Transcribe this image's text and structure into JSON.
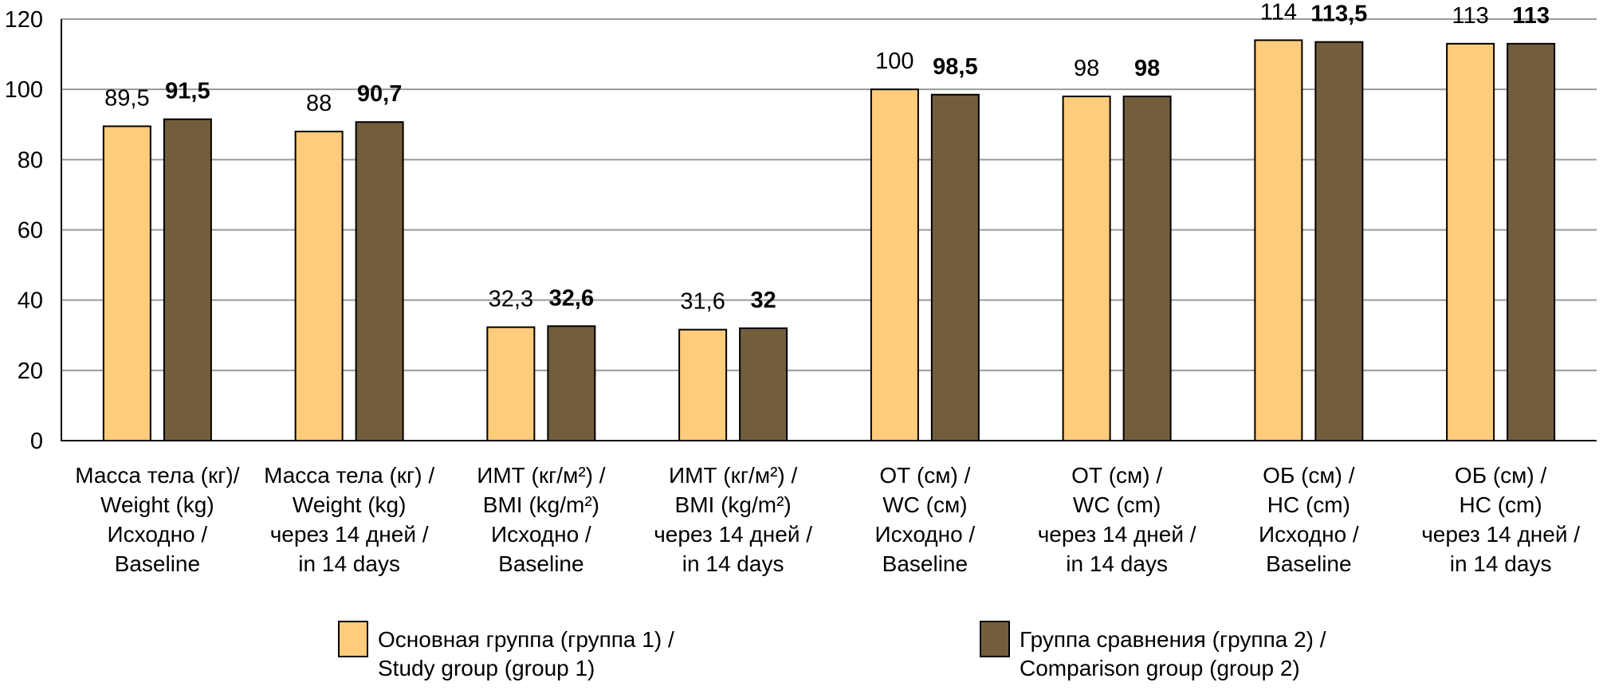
{
  "chart_data": {
    "type": "bar",
    "title": "",
    "xlabel": "",
    "ylabel": "",
    "ylim": [
      0,
      120
    ],
    "yticks": [
      0,
      20,
      40,
      60,
      80,
      100,
      120
    ],
    "ytick_labels": [
      "0",
      "20",
      "40",
      "60",
      "80",
      "100",
      "120"
    ],
    "grid": true,
    "legend_position": "bottom",
    "categories": [
      {
        "lines": [
          "Масса тела (кг)/",
          "Weight (kg)",
          "Исходно /",
          "Baseline"
        ]
      },
      {
        "lines": [
          "Масса тела (кг) /",
          "Weight (kg)",
          "через 14 дней /",
          "in 14 days"
        ]
      },
      {
        "lines": [
          "ИМТ (кг/м²) /",
          "BMI (kg/m²)",
          "Исходно /",
          "Baseline"
        ]
      },
      {
        "lines": [
          "ИМТ (кг/м²) /",
          "BMI (kg/m²)",
          "через 14 дней /",
          "in 14 days"
        ]
      },
      {
        "lines": [
          "ОТ (см) /",
          "WC (см)",
          "Исходно /",
          "Baseline"
        ]
      },
      {
        "lines": [
          "ОТ (см) /",
          "WC (cm)",
          "через 14 дней /",
          "in 14 days"
        ]
      },
      {
        "lines": [
          "ОБ (см) /",
          "HC (cm)",
          "Исходно /",
          "Baseline"
        ]
      },
      {
        "lines": [
          "ОБ (см) /",
          "HC (cm)",
          "через 14 дней /",
          "in 14 days"
        ]
      }
    ],
    "series": [
      {
        "name_lines": [
          "Основная группа (группа 1) /",
          "Study group (group 1)"
        ],
        "color": "#FFCC7B",
        "bold_labels": false,
        "values": [
          89.5,
          88,
          32.3,
          31.6,
          100,
          98,
          114,
          113
        ],
        "labels": [
          "89,5",
          "88",
          "32,3",
          "31,6",
          "100",
          "98",
          "114",
          "113"
        ]
      },
      {
        "name_lines": [
          "Группа сравнения (группа 2) /",
          "Comparison group (group 2)"
        ],
        "color": "#735E3C",
        "bold_labels": true,
        "values": [
          91.5,
          90.7,
          32.6,
          32,
          98.5,
          98,
          113.5,
          113
        ],
        "labels": [
          "91,5",
          "90,7",
          "32,6",
          "32",
          "98,5",
          "98",
          "113,5",
          "113"
        ]
      }
    ]
  }
}
